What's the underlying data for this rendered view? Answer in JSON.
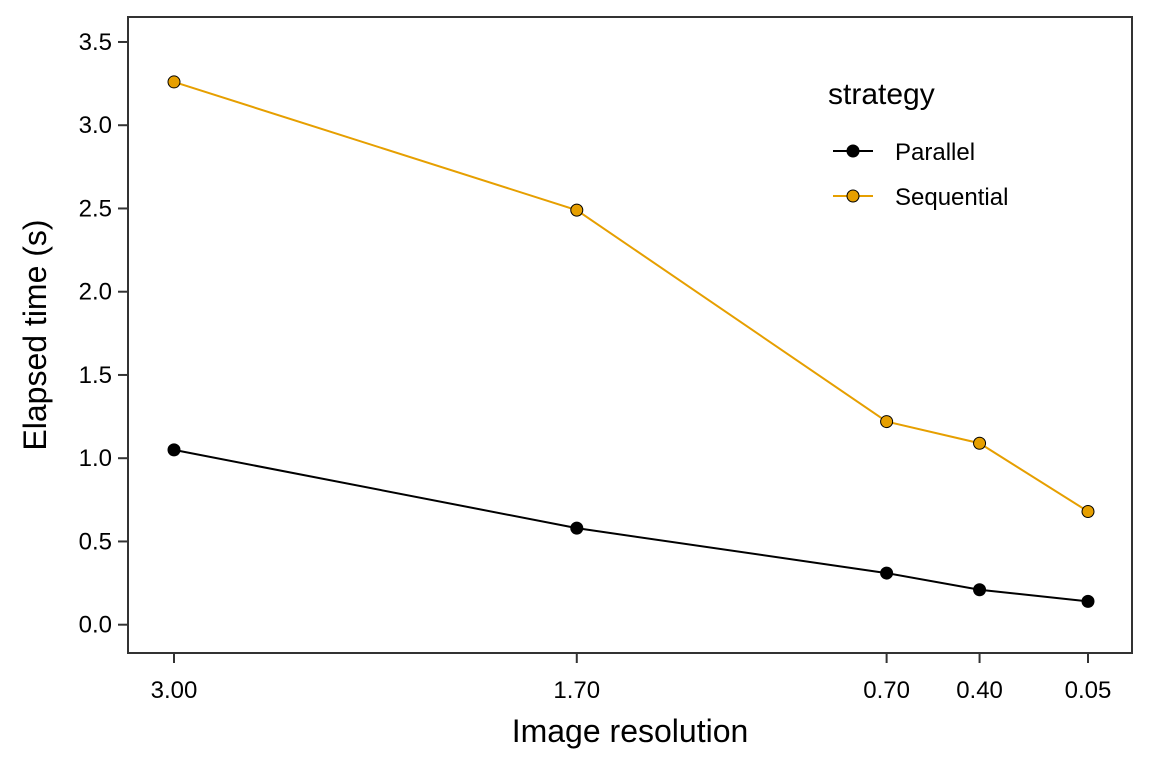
{
  "chart_data": {
    "type": "line",
    "title": "",
    "xlabel": "Image resolution",
    "ylabel": "Elapsed time (s)",
    "x": [
      "3.00",
      "1.70",
      "0.70",
      "0.40",
      "0.05"
    ],
    "x_values": [
      3.0,
      1.7,
      0.7,
      0.4,
      0.05
    ],
    "x_reversed": true,
    "ylim": [
      -0.17,
      3.65
    ],
    "yticks": [
      "0.0",
      "0.5",
      "1.0",
      "1.5",
      "2.0",
      "2.5",
      "3.0",
      "3.5"
    ],
    "ytick_values": [
      0.0,
      0.5,
      1.0,
      1.5,
      2.0,
      2.5,
      3.0,
      3.5
    ],
    "grid": false,
    "legend": {
      "title": "strategy",
      "placement": "top-right inside"
    },
    "series": [
      {
        "name": "Parallel",
        "color": "#000000",
        "values": [
          1.05,
          0.58,
          0.31,
          0.21,
          0.14
        ]
      },
      {
        "name": "Sequential",
        "color": "#E69F00",
        "values": [
          3.26,
          2.49,
          1.22,
          1.09,
          0.68
        ]
      }
    ]
  }
}
